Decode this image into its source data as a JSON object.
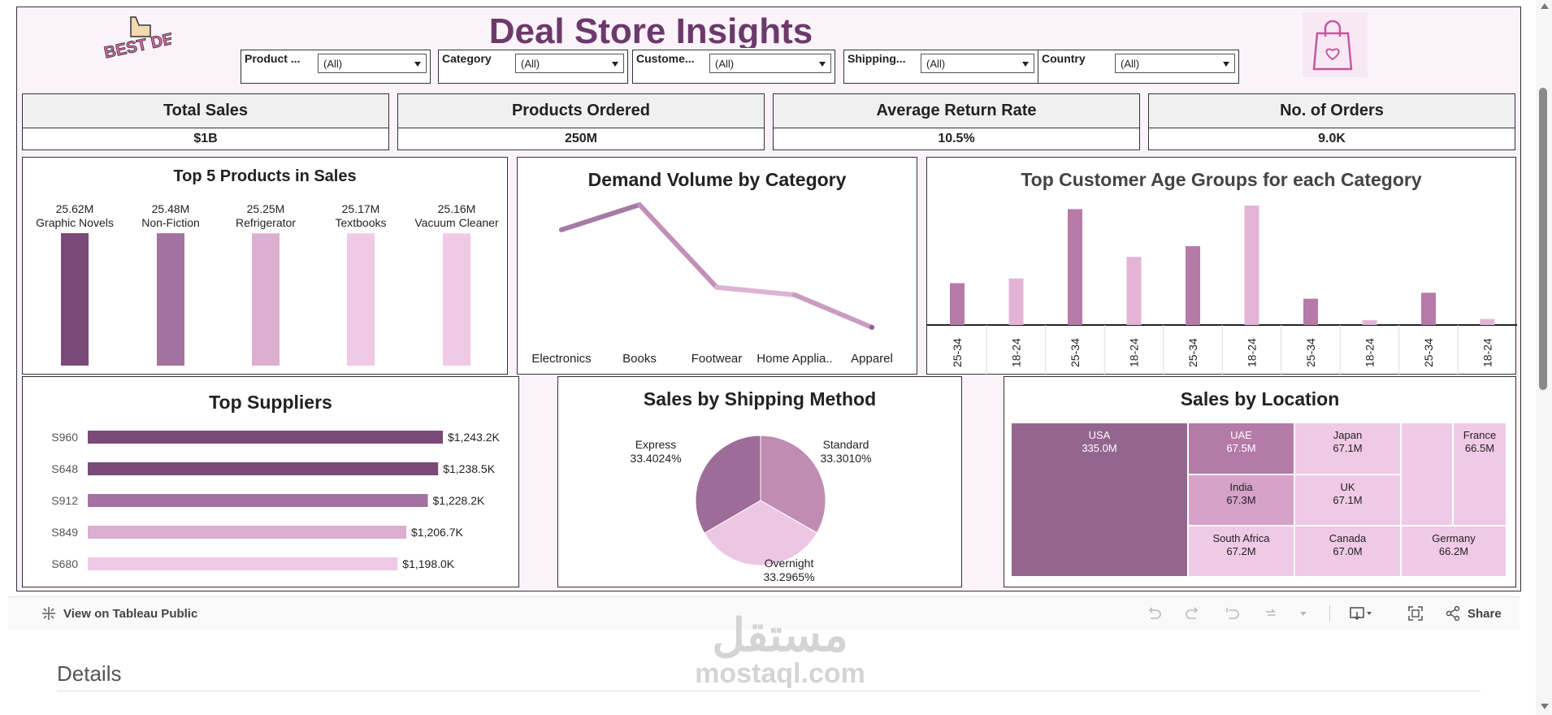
{
  "dashboard": {
    "title": "Deal Store Insights",
    "logo_text": "BEST DEAL!"
  },
  "filters": [
    {
      "label": "Product ...",
      "value": "(All)"
    },
    {
      "label": "Category",
      "value": "(All)"
    },
    {
      "label": "Custome...",
      "value": "(All)"
    },
    {
      "label": "Shipping...",
      "value": "(All)"
    },
    {
      "label": "Country",
      "value": "(All)"
    }
  ],
  "kpis": [
    {
      "label": "Total Sales",
      "value": "$1B"
    },
    {
      "label": "Products Ordered",
      "value": "250M"
    },
    {
      "label": "Average Return Rate",
      "value": "10.5%"
    },
    {
      "label": "No. of Orders",
      "value": "9.0K"
    }
  ],
  "colors": {
    "dark": "#7a4a78",
    "mid": "#a4729f",
    "light": "#dcaed0",
    "pale": "#efc9e5",
    "title": "#6b3a6b"
  },
  "top_products": {
    "title": "Top 5 Products in Sales",
    "chart_data": {
      "type": "bar",
      "categories": [
        "Graphic Novels",
        "Non-Fiction",
        "Refrigerator",
        "Textbooks",
        "Vacuum Cleaner"
      ],
      "values": [
        25.62,
        25.48,
        25.25,
        25.17,
        25.16
      ],
      "value_labels": [
        "25.62M",
        "25.48M",
        "25.25M",
        "25.17M",
        "25.16M"
      ]
    }
  },
  "demand": {
    "title": "Demand Volume by Category",
    "chart_data": {
      "type": "line",
      "categories": [
        "Electronics",
        "Books",
        "Footwear",
        "Home Applia..",
        "Apparel"
      ],
      "values": [
        0.8,
        1.0,
        0.34,
        0.28,
        0.02
      ]
    }
  },
  "age_groups": {
    "title": "Top Customer Age Groups for each Category",
    "chart_data": {
      "type": "bar",
      "categories": [
        "25-34",
        "18-24",
        "25-34",
        "18-24",
        "25-34",
        "18-24",
        "25-34",
        "18-24",
        "25-34",
        "18-24"
      ],
      "values": [
        0.35,
        0.39,
        0.97,
        0.57,
        0.66,
        1.0,
        0.22,
        0.04,
        0.27,
        0.05
      ],
      "shades": [
        "#b67aa8",
        "#e4b4d6",
        "#b67aa8",
        "#e4b4d6",
        "#b67aa8",
        "#e4b4d6",
        "#b67aa8",
        "#e4b4d6",
        "#b67aa8",
        "#e4b4d6"
      ]
    }
  },
  "suppliers": {
    "title": "Top Suppliers",
    "chart_data": {
      "type": "bar",
      "categories": [
        "S960",
        "S648",
        "S912",
        "S849",
        "S680"
      ],
      "values": [
        1243.2,
        1238.5,
        1228.2,
        1206.7,
        1198.0
      ],
      "value_labels": [
        "$1,243.2K",
        "$1,238.5K",
        "$1,228.2K",
        "$1,206.7K",
        "$1,198.0K"
      ]
    }
  },
  "shipping": {
    "title": "Sales by Shipping Method",
    "chart_data": {
      "type": "pie",
      "categories": [
        "Express",
        "Standard",
        "Overnight"
      ],
      "values": [
        33.4024,
        33.301,
        33.2965
      ],
      "value_labels": [
        "33.4024%",
        "33.3010%",
        "33.2965%"
      ],
      "colors": [
        "#9e6c98",
        "#c08cb2",
        "#ecc6e2"
      ]
    }
  },
  "location": {
    "title": "Sales by Location",
    "chart_data": {
      "type": "treemap",
      "categories": [
        "USA",
        "UAE",
        "India",
        "Japan",
        "UK",
        "South Africa",
        "Canada",
        "France",
        "Germany"
      ],
      "value_labels": [
        "335.0M",
        "67.5M",
        "67.3M",
        "67.1M",
        "67.1M",
        "67.2M",
        "67.0M",
        "66.5M",
        "66.2M"
      ]
    }
  },
  "toolbar": {
    "view_label": "View on Tableau Public",
    "share_label": "Share"
  },
  "details_label": "Details",
  "watermark": {
    "arabic": "مستقل",
    "latin": "mostaql.com"
  }
}
